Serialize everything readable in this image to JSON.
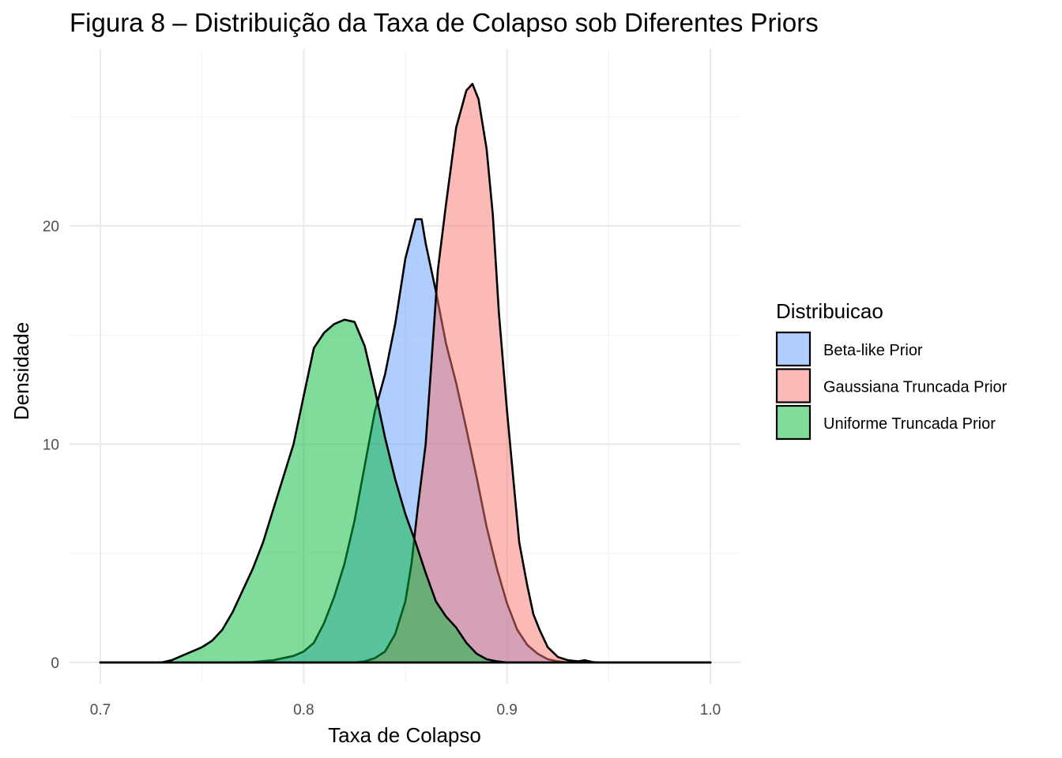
{
  "chart_data": {
    "type": "area",
    "title": "Figura 8 – Distribuição da Taxa de Colapso sob Diferentes Priors",
    "xlabel": "Taxa de Colapso",
    "ylabel": "Densidade",
    "xlim": [
      0.7,
      1.0
    ],
    "ylim": [
      0,
      26.8
    ],
    "x_ticks": [
      {
        "value": 0.7,
        "label": "0.7"
      },
      {
        "value": 0.8,
        "label": "0.8"
      },
      {
        "value": 0.9,
        "label": "0.9"
      },
      {
        "value": 1.0,
        "label": "1.0"
      }
    ],
    "y_ticks": [
      {
        "value": 0,
        "label": "0"
      },
      {
        "value": 10,
        "label": "10"
      },
      {
        "value": 20,
        "label": "20"
      }
    ],
    "grid": true,
    "legend": {
      "title": "Distribuicao",
      "position": "right"
    },
    "series": [
      {
        "name": "Beta-like Prior",
        "color": "#619CFF",
        "points": [
          [
            0.7,
            0
          ],
          [
            0.76,
            0
          ],
          [
            0.775,
            0.02
          ],
          [
            0.785,
            0.1
          ],
          [
            0.795,
            0.3
          ],
          [
            0.8,
            0.5
          ],
          [
            0.805,
            0.9
          ],
          [
            0.81,
            1.8
          ],
          [
            0.815,
            3.0
          ],
          [
            0.82,
            4.5
          ],
          [
            0.825,
            6.5
          ],
          [
            0.83,
            9.0
          ],
          [
            0.835,
            11.5
          ],
          [
            0.84,
            13.2
          ],
          [
            0.845,
            15.5
          ],
          [
            0.85,
            18.5
          ],
          [
            0.855,
            20.3
          ],
          [
            0.858,
            20.3
          ],
          [
            0.86,
            19.2
          ],
          [
            0.865,
            17.0
          ],
          [
            0.87,
            14.6
          ],
          [
            0.875,
            12.8
          ],
          [
            0.88,
            10.7
          ],
          [
            0.885,
            8.5
          ],
          [
            0.89,
            6.2
          ],
          [
            0.895,
            4.3
          ],
          [
            0.9,
            2.7
          ],
          [
            0.905,
            1.5
          ],
          [
            0.91,
            0.8
          ],
          [
            0.915,
            0.4
          ],
          [
            0.92,
            0.15
          ],
          [
            0.925,
            0.05
          ],
          [
            0.93,
            0
          ],
          [
            1.0,
            0
          ]
        ]
      },
      {
        "name": "Gaussiana Truncada Prior",
        "color": "#F8766D",
        "points": [
          [
            0.7,
            0
          ],
          [
            0.825,
            0
          ],
          [
            0.83,
            0.05
          ],
          [
            0.835,
            0.2
          ],
          [
            0.84,
            0.5
          ],
          [
            0.845,
            1.3
          ],
          [
            0.85,
            2.8
          ],
          [
            0.853,
            4.5
          ],
          [
            0.856,
            7.0
          ],
          [
            0.86,
            10.0
          ],
          [
            0.863,
            14.0
          ],
          [
            0.866,
            18.0
          ],
          [
            0.87,
            21.0
          ],
          [
            0.875,
            24.5
          ],
          [
            0.88,
            26.2
          ],
          [
            0.883,
            26.5
          ],
          [
            0.886,
            25.8
          ],
          [
            0.89,
            23.5
          ],
          [
            0.893,
            20.5
          ],
          [
            0.896,
            16.0
          ],
          [
            0.9,
            11.5
          ],
          [
            0.903,
            8.5
          ],
          [
            0.906,
            5.5
          ],
          [
            0.91,
            3.5
          ],
          [
            0.913,
            2.2
          ],
          [
            0.916,
            1.5
          ],
          [
            0.92,
            0.7
          ],
          [
            0.925,
            0.25
          ],
          [
            0.93,
            0.1
          ],
          [
            0.935,
            0.05
          ],
          [
            0.938,
            0.1
          ],
          [
            0.942,
            0.02
          ],
          [
            0.945,
            0
          ],
          [
            1.0,
            0
          ]
        ]
      },
      {
        "name": "Uniforme Truncada Prior",
        "color": "#00BA38",
        "points": [
          [
            0.7,
            0
          ],
          [
            0.73,
            0
          ],
          [
            0.735,
            0.1
          ],
          [
            0.74,
            0.3
          ],
          [
            0.745,
            0.5
          ],
          [
            0.75,
            0.7
          ],
          [
            0.755,
            1.0
          ],
          [
            0.76,
            1.5
          ],
          [
            0.765,
            2.3
          ],
          [
            0.77,
            3.3
          ],
          [
            0.775,
            4.3
          ],
          [
            0.78,
            5.5
          ],
          [
            0.785,
            7.0
          ],
          [
            0.79,
            8.5
          ],
          [
            0.795,
            10.0
          ],
          [
            0.8,
            12.2
          ],
          [
            0.805,
            14.4
          ],
          [
            0.81,
            15.1
          ],
          [
            0.815,
            15.5
          ],
          [
            0.82,
            15.7
          ],
          [
            0.825,
            15.6
          ],
          [
            0.83,
            14.5
          ],
          [
            0.835,
            12.5
          ],
          [
            0.84,
            10.3
          ],
          [
            0.845,
            8.4
          ],
          [
            0.85,
            6.8
          ],
          [
            0.855,
            5.5
          ],
          [
            0.86,
            4.1
          ],
          [
            0.865,
            2.8
          ],
          [
            0.87,
            2.1
          ],
          [
            0.875,
            1.6
          ],
          [
            0.88,
            0.9
          ],
          [
            0.885,
            0.4
          ],
          [
            0.89,
            0.15
          ],
          [
            0.895,
            0.05
          ],
          [
            0.9,
            0
          ],
          [
            1.0,
            0
          ]
        ]
      }
    ]
  }
}
